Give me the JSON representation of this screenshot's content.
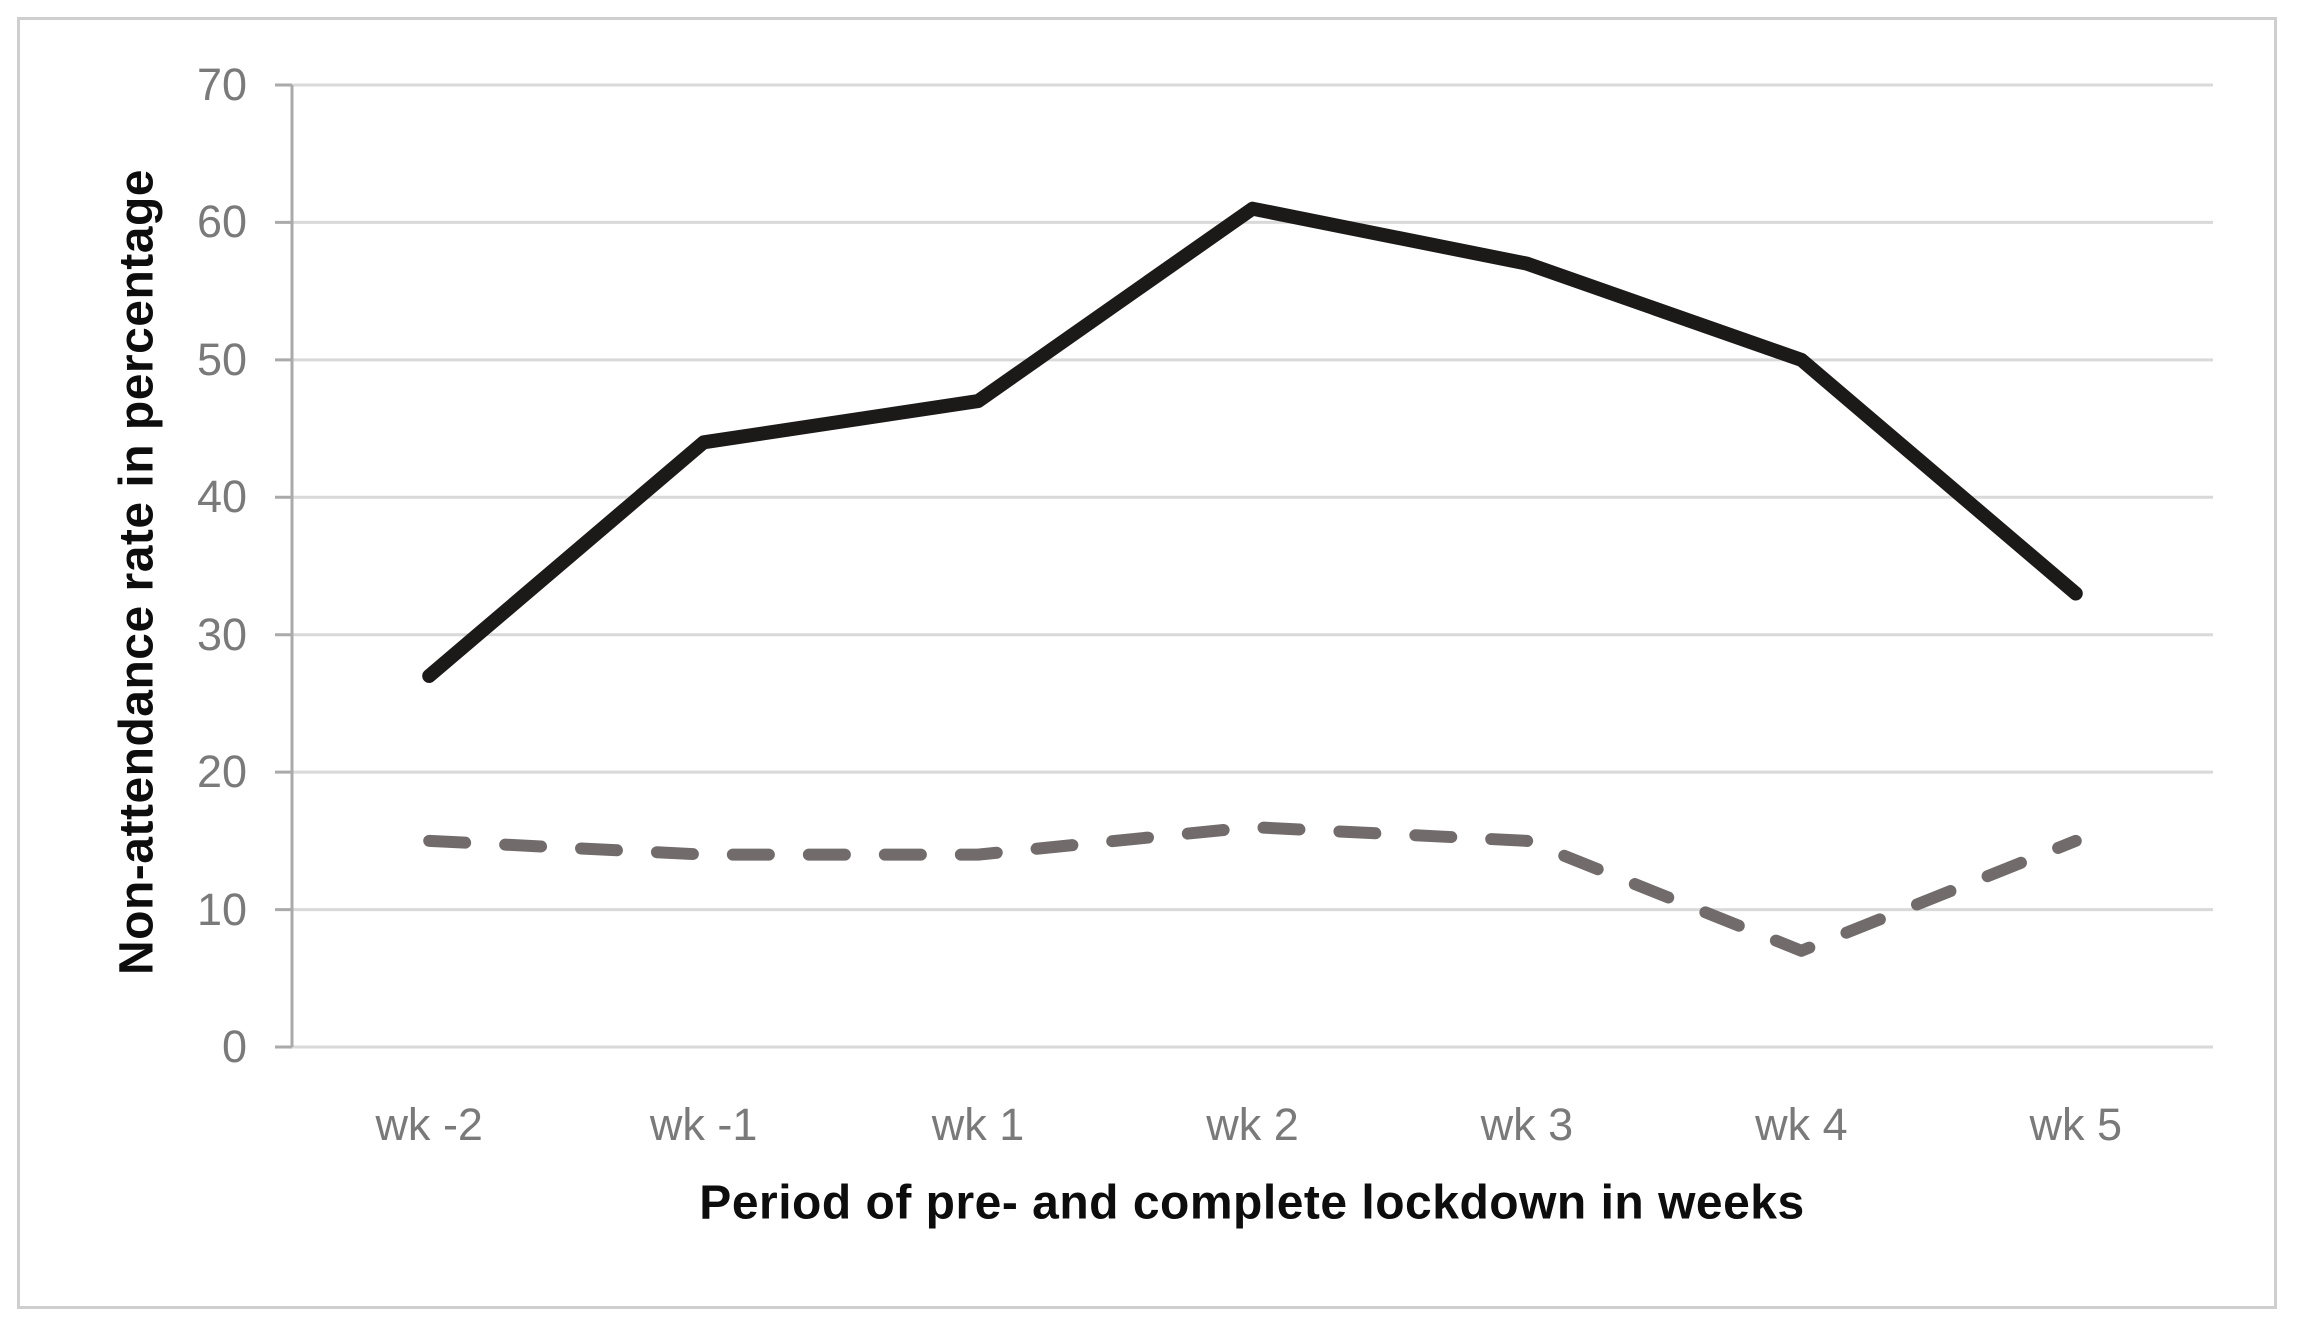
{
  "figure": {
    "background": "#ffffff",
    "border_color": "#cfcfcf"
  },
  "chart_data": {
    "type": "line",
    "title": "",
    "xlabel": "Period of pre- and complete lockdown in weeks",
    "ylabel": "Non-attendance rate in percentage",
    "categories": [
      "wk -2",
      "wk -1",
      "wk 1",
      "wk 2",
      "wk 3",
      "wk 4",
      "wk 5"
    ],
    "series": [
      {
        "name": "solid-series",
        "line_style": "solid",
        "color": "#1c1919",
        "values": [
          27,
          44,
          47,
          61,
          57,
          50,
          33
        ]
      },
      {
        "name": "dashed-series",
        "line_style": "dashed",
        "color": "#716b6b",
        "values": [
          15,
          14,
          14,
          16,
          15,
          7,
          15
        ]
      }
    ],
    "y_ticks": [
      0,
      10,
      20,
      30,
      40,
      50,
      60,
      70
    ],
    "ylim": [
      0,
      70
    ],
    "grid": "horizontal",
    "gridline_color": "#d9d9d9",
    "axis_color": "#aaaaaa",
    "tick_label_color": "#7a7a7a",
    "axis_title_color": "#0d0d0d",
    "legend": "none"
  }
}
